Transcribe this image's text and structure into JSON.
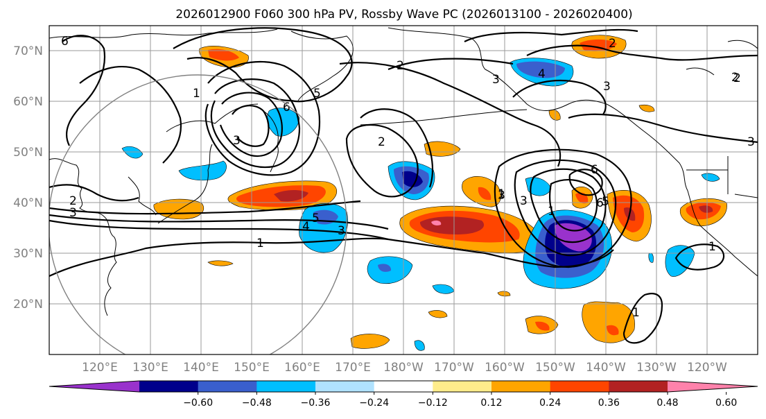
{
  "title": "2026012900 F060 300 hPa PV, Rossby Wave PC (2026013100 - 2026020400)",
  "lat_labels": [
    "70°N",
    "60°N",
    "50°N",
    "40°N",
    "30°N",
    "20°N"
  ],
  "lon_labels": [
    "120°E",
    "130°E",
    "140°E",
    "150°E",
    "160°E",
    "170°E",
    "180°W",
    "170°W",
    "160°W",
    "150°W",
    "140°W",
    "130°W",
    "120°W"
  ],
  "colorbar": {
    "ticks": [
      "−0.60",
      "−0.48",
      "−0.36",
      "−0.24",
      "−0.12",
      "0.12",
      "0.24",
      "0.36",
      "0.48",
      "0.60"
    ],
    "colors": [
      "#9932cc",
      "#00008b",
      "#3a5fcd",
      "#00bfff",
      "#b0e2ff",
      "#ffffff",
      "#ffec8b",
      "#ffa500",
      "#ff4500",
      "#b22222",
      "#ff82ab"
    ]
  },
  "contour_labels": [
    "6",
    "2",
    "2",
    "4",
    "3",
    "2",
    "3",
    "1",
    "6",
    "5",
    "3",
    "2",
    "2",
    "3",
    "3",
    "4",
    "5",
    "3",
    "1",
    "1",
    "3",
    "6",
    "6",
    "5",
    "1",
    "1",
    "1",
    "3",
    "2"
  ]
}
